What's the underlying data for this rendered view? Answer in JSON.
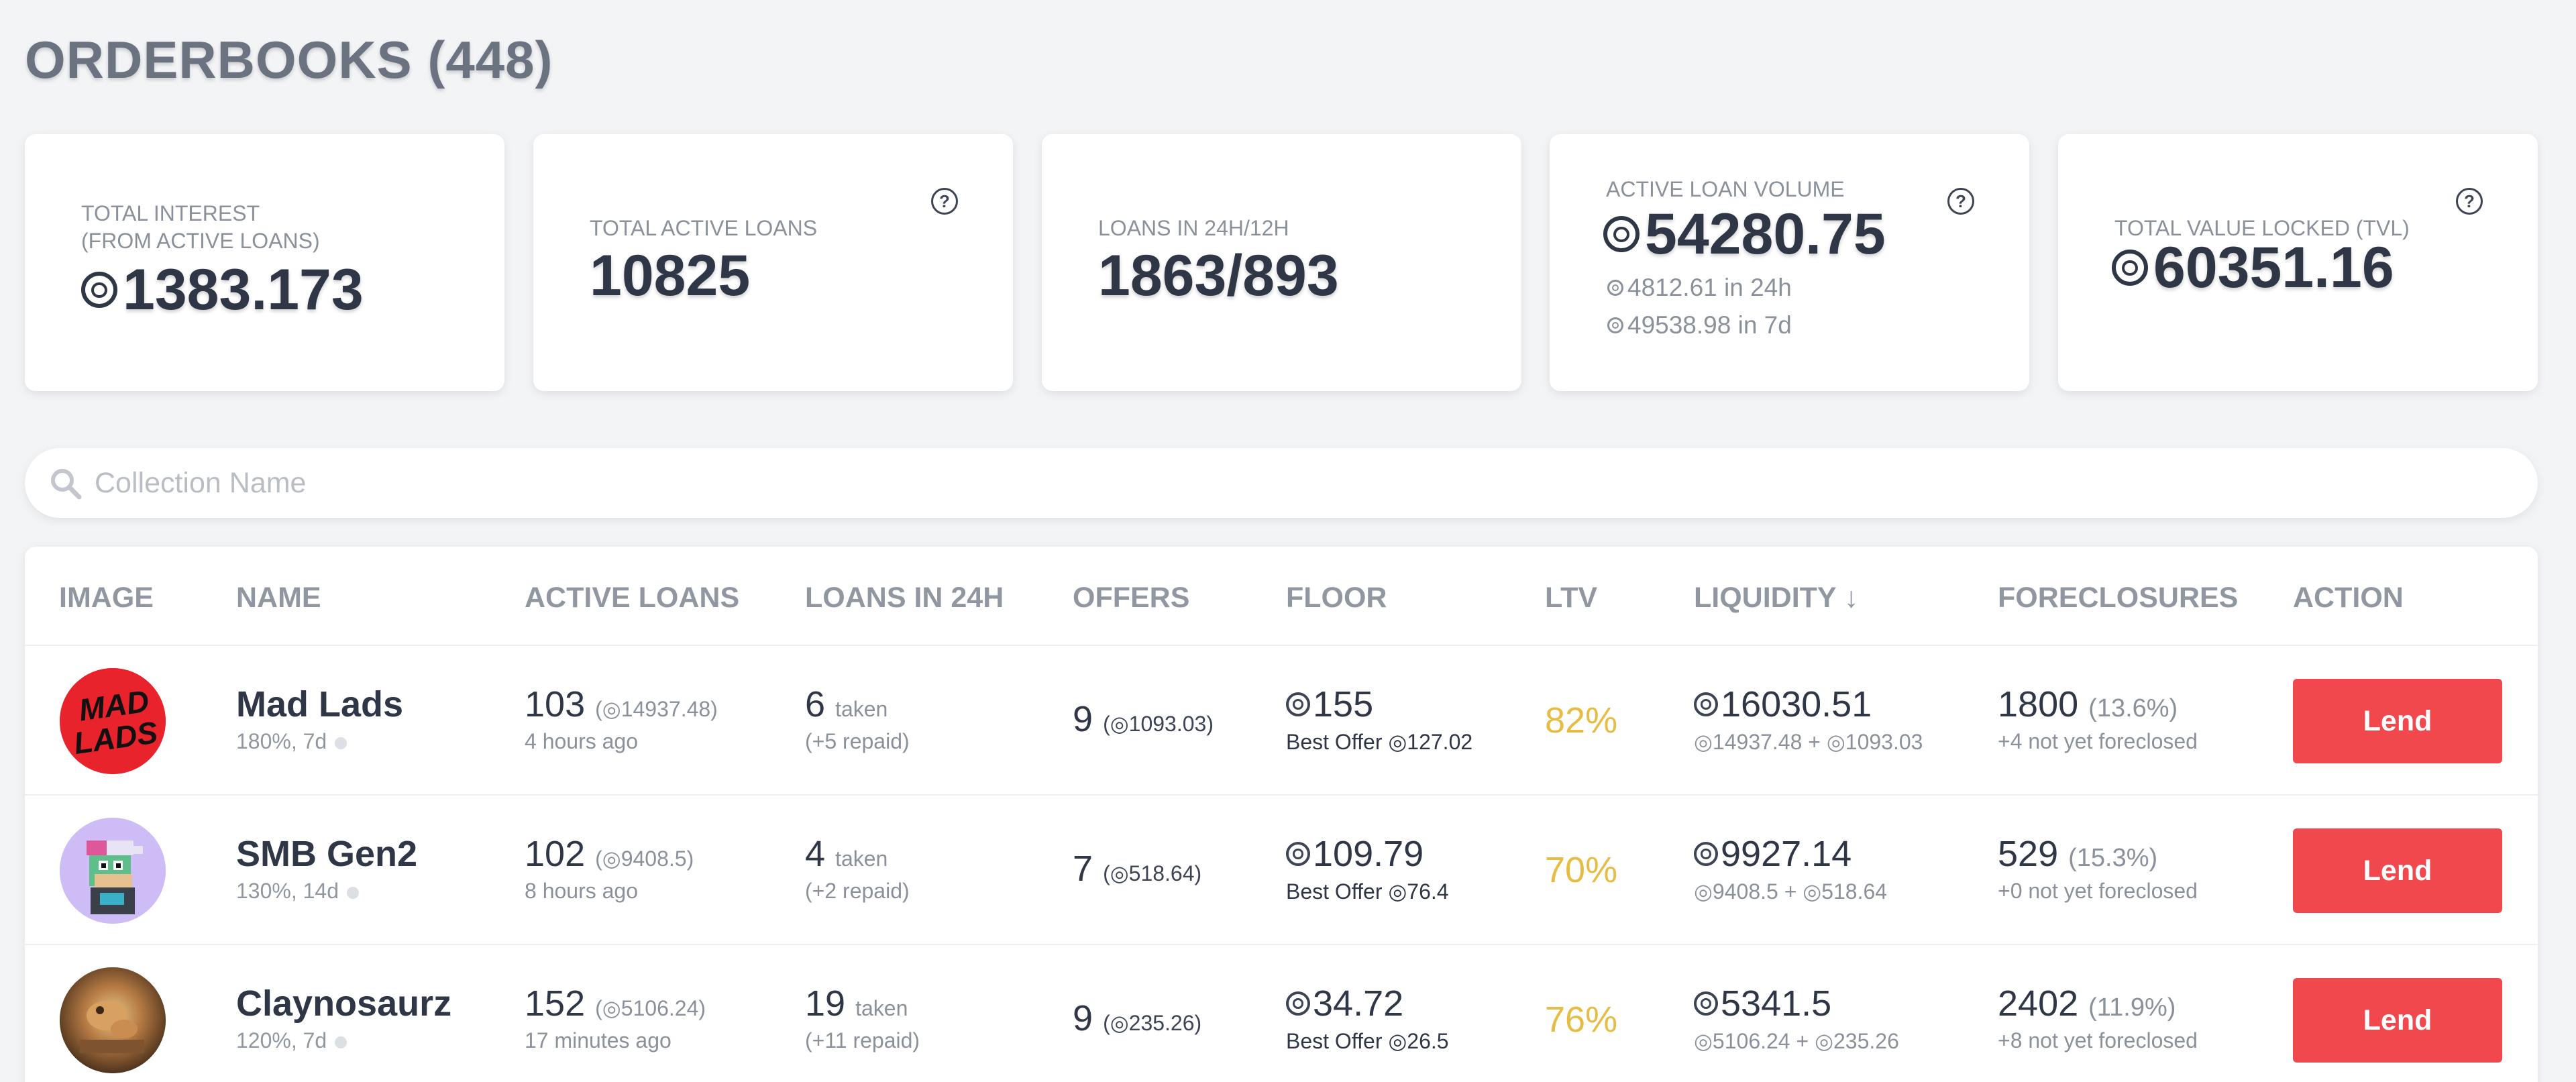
{
  "page": {
    "title": "ORDERBOOKS (448)"
  },
  "stats": {
    "total_interest": {
      "label_line1": "TOTAL INTEREST",
      "label_line2": "(FROM ACTIVE LOANS)",
      "value": "1383.173"
    },
    "total_active_loans": {
      "label": "TOTAL ACTIVE LOANS",
      "value": "10825",
      "help": "?"
    },
    "loans_24h_12h": {
      "label": "LOANS IN 24H/12H",
      "value": "1863/893"
    },
    "active_loan_volume": {
      "label": "ACTIVE LOAN VOLUME",
      "value": "54280.75",
      "sub1": "4812.61 in 24h",
      "sub2": "49538.98 in 7d",
      "help": "?"
    },
    "tvl": {
      "label": "TOTAL VALUE LOCKED (TVL)",
      "value": "60351.16",
      "help": "?"
    }
  },
  "search": {
    "placeholder": "Collection Name",
    "value": ""
  },
  "table": {
    "headers": {
      "image": "IMAGE",
      "name": "NAME",
      "active_loans": "ACTIVE LOANS",
      "loans_24h": "LOANS IN 24H",
      "offers": "OFFERS",
      "floor": "FLOOR",
      "ltv": "LTV",
      "liquidity": "LIQUIDITY ↓",
      "foreclosures": "FORECLOSURES",
      "action": "ACTION"
    },
    "rows": [
      {
        "name": "Mad Lads",
        "terms": "180%, 7d",
        "active_loans": "103",
        "active_loans_amount": "(◎14937.48)",
        "active_loans_time": "4 hours ago",
        "loans_24h": "6",
        "loans_24h_taken": "taken",
        "loans_24h_repaid": "(+5 repaid)",
        "offers": "9",
        "offers_amount": "(◎1093.03)",
        "floor": "155",
        "best_offer": "Best Offer ◎127.02",
        "ltv": "82%",
        "liquidity": "16030.51",
        "liquidity_breakdown": "◎14937.48 + ◎1093.03",
        "foreclosures": "1800",
        "foreclosures_pct": "(13.6%)",
        "foreclosures_note": "+4 not yet foreclosed",
        "action": "Lend"
      },
      {
        "name": "SMB Gen2",
        "terms": "130%, 14d",
        "active_loans": "102",
        "active_loans_amount": "(◎9408.5)",
        "active_loans_time": "8 hours ago",
        "loans_24h": "4",
        "loans_24h_taken": "taken",
        "loans_24h_repaid": "(+2 repaid)",
        "offers": "7",
        "offers_amount": "(◎518.64)",
        "floor": "109.79",
        "best_offer": "Best Offer ◎76.4",
        "ltv": "70%",
        "liquidity": "9927.14",
        "liquidity_breakdown": "◎9408.5 + ◎518.64",
        "foreclosures": "529",
        "foreclosures_pct": "(15.3%)",
        "foreclosures_note": "+0 not yet foreclosed",
        "action": "Lend"
      },
      {
        "name": "Claynosaurz",
        "terms": "120%, 7d",
        "active_loans": "152",
        "active_loans_amount": "(◎5106.24)",
        "active_loans_time": "17 minutes ago",
        "loans_24h": "19",
        "loans_24h_taken": "taken",
        "loans_24h_repaid": "(+11 repaid)",
        "offers": "9",
        "offers_amount": "(◎235.26)",
        "floor": "34.72",
        "best_offer": "Best Offer ◎26.5",
        "ltv": "76%",
        "liquidity": "5341.5",
        "liquidity_breakdown": "◎5106.24 + ◎235.26",
        "foreclosures": "2402",
        "foreclosures_pct": "(11.9%)",
        "foreclosures_note": "+8 not yet foreclosed",
        "action": "Lend"
      }
    ]
  },
  "avatars": {
    "mad_lads": {
      "logo_text_1": "MAD",
      "logo_text_2": "LADS",
      "bg": "#e8232c"
    },
    "smb": {
      "bg": "#cdbcf5"
    },
    "clayno": {
      "bg": "#6b4a2c"
    }
  },
  "colors": {
    "lend_button": "#f0484d",
    "ltv": "#e7bc43",
    "title": "#6b7280"
  }
}
